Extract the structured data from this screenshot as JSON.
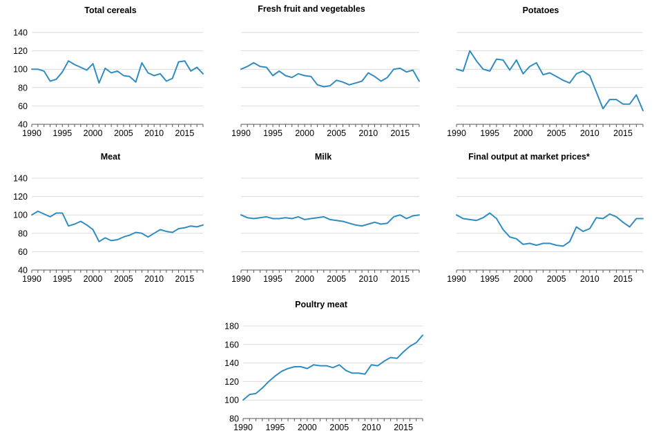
{
  "figure": {
    "line_color": "#2E8CC0",
    "grid_color": "#D9D9D9",
    "axis_color": "#555555",
    "text_color": "#000000"
  },
  "chart_data": [
    {
      "type": "line",
      "title": "Total cereals",
      "xlabel": "",
      "ylabel": "",
      "x_ticks": [
        1990,
        1995,
        2000,
        2005,
        2010,
        2015
      ],
      "y_ticks": [
        40,
        60,
        80,
        100,
        120,
        140
      ],
      "show_y_labels": true,
      "ylim": [
        40,
        140
      ],
      "xlim": [
        1990,
        2018
      ],
      "grid": true,
      "x": [
        1990,
        1991,
        1992,
        1993,
        1994,
        1995,
        1996,
        1997,
        1998,
        1999,
        2000,
        2001,
        2002,
        2003,
        2004,
        2005,
        2006,
        2007,
        2008,
        2009,
        2010,
        2011,
        2012,
        2013,
        2014,
        2015,
        2016,
        2017,
        2018
      ],
      "values": [
        100,
        100,
        98,
        87,
        89,
        97,
        109,
        105,
        102,
        99,
        106,
        85,
        101,
        96,
        98,
        93,
        92,
        86,
        107,
        96,
        93,
        95,
        87,
        90,
        108,
        109,
        98,
        102,
        95
      ]
    },
    {
      "type": "line",
      "title": "Fresh fruit and vegetables",
      "xlabel": "",
      "ylabel": "",
      "x_ticks": [
        1990,
        1995,
        2000,
        2005,
        2010,
        2015
      ],
      "y_ticks": [
        40,
        60,
        80,
        100,
        120,
        140
      ],
      "show_y_labels": false,
      "ylim": [
        40,
        140
      ],
      "xlim": [
        1990,
        2018
      ],
      "grid": true,
      "x": [
        1990,
        1991,
        1992,
        1993,
        1994,
        1995,
        1996,
        1997,
        1998,
        1999,
        2000,
        2001,
        2002,
        2003,
        2004,
        2005,
        2006,
        2007,
        2008,
        2009,
        2010,
        2011,
        2012,
        2013,
        2014,
        2015,
        2016,
        2017,
        2018
      ],
      "values": [
        100,
        103,
        107,
        103,
        102,
        93,
        98,
        93,
        91,
        95,
        93,
        92,
        83,
        81,
        82,
        88,
        86,
        83,
        85,
        87,
        96,
        92,
        87,
        91,
        100,
        101,
        97,
        99,
        87
      ]
    },
    {
      "type": "line",
      "title": "Potatoes",
      "xlabel": "",
      "ylabel": "",
      "x_ticks": [
        1990,
        1995,
        2000,
        2005,
        2010,
        2015
      ],
      "y_ticks": [
        40,
        60,
        80,
        100,
        120,
        140
      ],
      "show_y_labels": false,
      "ylim": [
        40,
        140
      ],
      "xlim": [
        1990,
        2018
      ],
      "grid": true,
      "x": [
        1990,
        1991,
        1992,
        1993,
        1994,
        1995,
        1996,
        1997,
        1998,
        1999,
        2000,
        2001,
        2002,
        2003,
        2004,
        2005,
        2006,
        2007,
        2008,
        2009,
        2010,
        2011,
        2012,
        2013,
        2014,
        2015,
        2016,
        2017,
        2018
      ],
      "values": [
        100,
        98,
        120,
        109,
        100,
        98,
        111,
        110,
        99,
        110,
        95,
        103,
        107,
        94,
        96,
        92,
        88,
        85,
        95,
        98,
        93,
        75,
        57,
        67,
        67,
        62,
        62,
        72,
        55
      ]
    },
    {
      "type": "line",
      "title": "Meat",
      "xlabel": "",
      "ylabel": "",
      "x_ticks": [
        1990,
        1995,
        2000,
        2005,
        2010,
        2015
      ],
      "y_ticks": [
        40,
        60,
        80,
        100,
        120,
        140
      ],
      "show_y_labels": true,
      "ylim": [
        40,
        140
      ],
      "xlim": [
        1990,
        2018
      ],
      "grid": true,
      "x": [
        1990,
        1991,
        1992,
        1993,
        1994,
        1995,
        1996,
        1997,
        1998,
        1999,
        2000,
        2001,
        2002,
        2003,
        2004,
        2005,
        2006,
        2007,
        2008,
        2009,
        2010,
        2011,
        2012,
        2013,
        2014,
        2015,
        2016,
        2017,
        2018
      ],
      "values": [
        100,
        104,
        101,
        98,
        102,
        102,
        88,
        90,
        93,
        89,
        84,
        71,
        75,
        72,
        73,
        76,
        78,
        81,
        80,
        76,
        80,
        84,
        82,
        81,
        85,
        86,
        88,
        87,
        89
      ]
    },
    {
      "type": "line",
      "title": "Milk",
      "xlabel": "",
      "ylabel": "",
      "x_ticks": [
        1990,
        1995,
        2000,
        2005,
        2010,
        2015
      ],
      "y_ticks": [
        40,
        60,
        80,
        100,
        120,
        140
      ],
      "show_y_labels": false,
      "ylim": [
        40,
        140
      ],
      "xlim": [
        1990,
        2018
      ],
      "grid": true,
      "x": [
        1990,
        1991,
        1992,
        1993,
        1994,
        1995,
        1996,
        1997,
        1998,
        1999,
        2000,
        2001,
        2002,
        2003,
        2004,
        2005,
        2006,
        2007,
        2008,
        2009,
        2010,
        2011,
        2012,
        2013,
        2014,
        2015,
        2016,
        2017,
        2018
      ],
      "values": [
        100,
        97,
        96,
        97,
        98,
        96,
        96,
        97,
        96,
        98,
        95,
        96,
        97,
        98,
        95,
        94,
        93,
        91,
        89,
        88,
        90,
        92,
        90,
        91,
        98,
        100,
        96,
        99,
        100
      ]
    },
    {
      "type": "line",
      "title": "Final output at market prices*",
      "xlabel": "",
      "ylabel": "",
      "x_ticks": [
        1990,
        1995,
        2000,
        2005,
        2010,
        2015
      ],
      "y_ticks": [
        40,
        60,
        80,
        100,
        120,
        140
      ],
      "show_y_labels": false,
      "ylim": [
        40,
        140
      ],
      "xlim": [
        1990,
        2018
      ],
      "grid": true,
      "x": [
        1990,
        1991,
        1992,
        1993,
        1994,
        1995,
        1996,
        1997,
        1998,
        1999,
        2000,
        2001,
        2002,
        2003,
        2004,
        2005,
        2006,
        2007,
        2008,
        2009,
        2010,
        2011,
        2012,
        2013,
        2014,
        2015,
        2016,
        2017,
        2018
      ],
      "values": [
        100,
        96,
        95,
        94,
        97,
        102,
        96,
        84,
        76,
        74,
        68,
        69,
        67,
        69,
        69,
        67,
        66,
        71,
        87,
        82,
        85,
        97,
        96,
        101,
        98,
        92,
        87,
        96,
        96
      ]
    },
    {
      "type": "line",
      "title": "Poultry meat",
      "xlabel": "",
      "ylabel": "",
      "x_ticks": [
        1990,
        1995,
        2000,
        2005,
        2010,
        2015
      ],
      "y_ticks": [
        80,
        100,
        120,
        140,
        160,
        180
      ],
      "show_y_labels": true,
      "ylim": [
        80,
        180
      ],
      "xlim": [
        1990,
        2018
      ],
      "grid": true,
      "x": [
        1990,
        1991,
        1992,
        1993,
        1994,
        1995,
        1996,
        1997,
        1998,
        1999,
        2000,
        2001,
        2002,
        2003,
        2004,
        2005,
        2006,
        2007,
        2008,
        2009,
        2010,
        2011,
        2012,
        2013,
        2014,
        2015,
        2016,
        2017,
        2018
      ],
      "values": [
        100,
        106,
        107,
        113,
        120,
        126,
        131,
        134,
        136,
        136,
        134,
        138,
        137,
        137,
        135,
        138,
        132,
        129,
        129,
        128,
        138,
        137,
        142,
        146,
        145,
        152,
        158,
        162,
        170
      ]
    }
  ]
}
